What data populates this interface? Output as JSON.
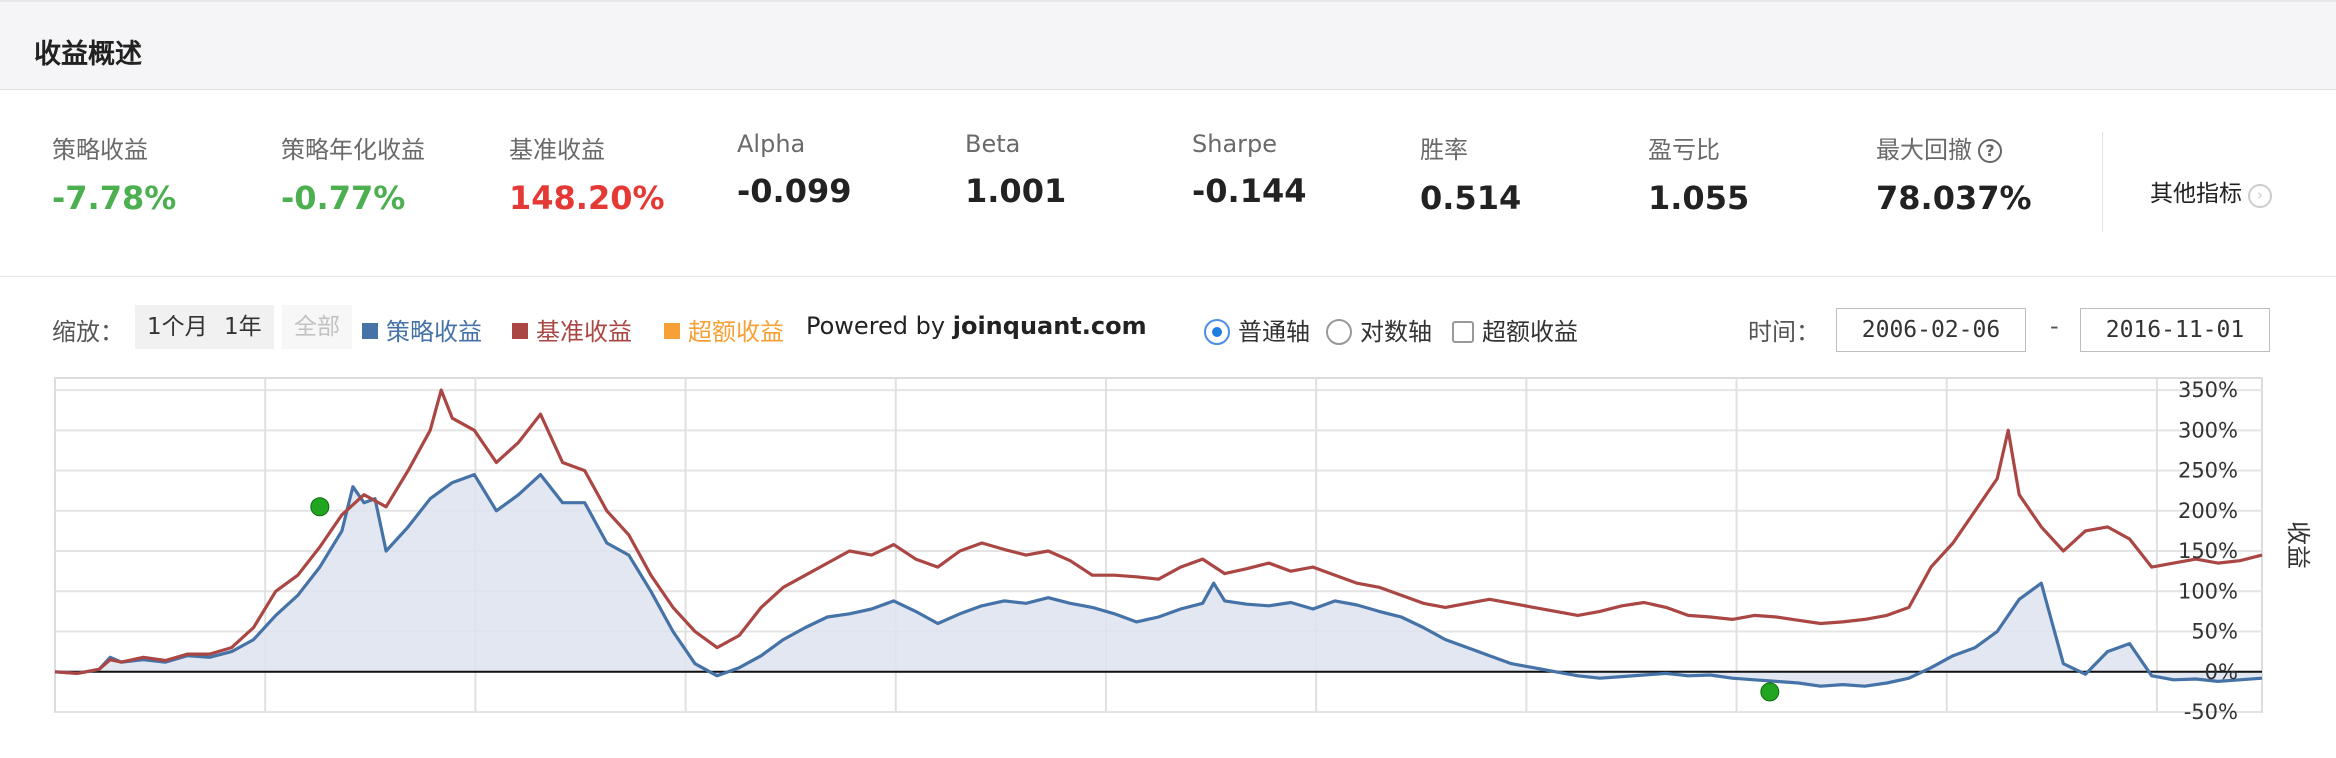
{
  "panel": {
    "title": "收益概述"
  },
  "metrics": [
    {
      "label": "策略收益",
      "value": "-7.78%",
      "color": "#4caf50"
    },
    {
      "label": "策略年化收益",
      "value": "-0.77%",
      "color": "#4caf50"
    },
    {
      "label": "基准收益",
      "value": "148.20%",
      "color": "#e53935"
    },
    {
      "label": "Alpha",
      "value": "-0.099",
      "color": "#222222"
    },
    {
      "label": "Beta",
      "value": "1.001",
      "color": "#222222"
    },
    {
      "label": "Sharpe",
      "value": "-0.144",
      "color": "#222222"
    },
    {
      "label": "胜率",
      "value": "0.514",
      "color": "#222222"
    },
    {
      "label": "盈亏比",
      "value": "1.055",
      "color": "#222222"
    },
    {
      "label": "最大回撤",
      "value": "78.037%",
      "color": "#222222",
      "help": "?"
    }
  ],
  "more_metrics": {
    "label": "其他指标",
    "chevron": "›"
  },
  "toolbar": {
    "zoom_label": "缩放：",
    "zoom_buttons": [
      "1个月",
      "1年",
      "全部"
    ],
    "legend": [
      {
        "label": "策略收益",
        "color": "#4572a7"
      },
      {
        "label": "基准收益",
        "color": "#aa4643"
      },
      {
        "label": "超额收益",
        "color": "#f7a035"
      }
    ],
    "powered_prefix": "Powered by ",
    "powered_site": "joinquant.com",
    "axis_options": [
      "普通轴",
      "对数轴"
    ],
    "excess_checkbox": "超额收益",
    "time_label": "时间：",
    "start_date": "2006-02-06",
    "date_sep": "-",
    "end_date": "2016-11-01"
  },
  "colors": {
    "strategy": "#4572a7",
    "benchmark": "#aa4643",
    "strategy_fill": "#dde3ee",
    "marker": "#22a622"
  },
  "chart_data": {
    "type": "line",
    "y_axis_label": "收益",
    "y_ticks": [
      "350%",
      "300%",
      "250%",
      "200%",
      "150%",
      "100%",
      "50%",
      "0%",
      "-50%"
    ],
    "ylim": [
      -50,
      365
    ],
    "x_domain": [
      0,
      100
    ],
    "grid": "on",
    "series": [
      {
        "name": "策略收益",
        "fill": true,
        "points": [
          [
            0,
            0
          ],
          [
            1,
            -2
          ],
          [
            2,
            3
          ],
          [
            2.5,
            18
          ],
          [
            3,
            12
          ],
          [
            4,
            15
          ],
          [
            5,
            12
          ],
          [
            6,
            20
          ],
          [
            7,
            18
          ],
          [
            8,
            25
          ],
          [
            9,
            40
          ],
          [
            10,
            70
          ],
          [
            11,
            95
          ],
          [
            12,
            130
          ],
          [
            13,
            175
          ],
          [
            13.5,
            230
          ],
          [
            14,
            210
          ],
          [
            14.5,
            215
          ],
          [
            15,
            150
          ],
          [
            16,
            180
          ],
          [
            17,
            215
          ],
          [
            18,
            235
          ],
          [
            19,
            245
          ],
          [
            20,
            200
          ],
          [
            21,
            220
          ],
          [
            22,
            245
          ],
          [
            23,
            210
          ],
          [
            24,
            210
          ],
          [
            25,
            160
          ],
          [
            26,
            145
          ],
          [
            27,
            100
          ],
          [
            28,
            50
          ],
          [
            29,
            10
          ],
          [
            30,
            -5
          ],
          [
            31,
            5
          ],
          [
            32,
            20
          ],
          [
            33,
            40
          ],
          [
            34,
            55
          ],
          [
            35,
            68
          ],
          [
            36,
            72
          ],
          [
            37,
            78
          ],
          [
            38,
            88
          ],
          [
            39,
            75
          ],
          [
            40,
            60
          ],
          [
            41,
            72
          ],
          [
            42,
            82
          ],
          [
            43,
            88
          ],
          [
            44,
            85
          ],
          [
            45,
            92
          ],
          [
            46,
            85
          ],
          [
            47,
            80
          ],
          [
            48,
            72
          ],
          [
            49,
            62
          ],
          [
            50,
            68
          ],
          [
            51,
            78
          ],
          [
            52,
            85
          ],
          [
            52.5,
            110
          ],
          [
            53,
            88
          ],
          [
            54,
            84
          ],
          [
            55,
            82
          ],
          [
            56,
            86
          ],
          [
            57,
            78
          ],
          [
            58,
            88
          ],
          [
            59,
            83
          ],
          [
            60,
            75
          ],
          [
            61,
            68
          ],
          [
            62,
            55
          ],
          [
            63,
            40
          ],
          [
            64,
            30
          ],
          [
            65,
            20
          ],
          [
            66,
            10
          ],
          [
            67,
            5
          ],
          [
            68,
            0
          ],
          [
            69,
            -5
          ],
          [
            70,
            -8
          ],
          [
            71,
            -6
          ],
          [
            72,
            -4
          ],
          [
            73,
            -2
          ],
          [
            74,
            -5
          ],
          [
            75,
            -4
          ],
          [
            76,
            -8
          ],
          [
            77,
            -10
          ],
          [
            78,
            -12
          ],
          [
            79,
            -14
          ],
          [
            80,
            -18
          ],
          [
            81,
            -16
          ],
          [
            82,
            -18
          ],
          [
            83,
            -14
          ],
          [
            84,
            -8
          ],
          [
            85,
            5
          ],
          [
            86,
            20
          ],
          [
            87,
            30
          ],
          [
            88,
            50
          ],
          [
            89,
            90
          ],
          [
            90,
            110
          ],
          [
            90.5,
            60
          ],
          [
            91,
            10
          ],
          [
            92,
            -3
          ],
          [
            93,
            25
          ],
          [
            94,
            35
          ],
          [
            95,
            -5
          ],
          [
            96,
            -10
          ],
          [
            97,
            -9
          ],
          [
            98,
            -12
          ],
          [
            99,
            -10
          ],
          [
            100,
            -8
          ]
        ]
      },
      {
        "name": "基准收益",
        "fill": false,
        "points": [
          [
            0,
            0
          ],
          [
            1,
            -2
          ],
          [
            2,
            3
          ],
          [
            2.5,
            15
          ],
          [
            3,
            12
          ],
          [
            4,
            18
          ],
          [
            5,
            14
          ],
          [
            6,
            22
          ],
          [
            7,
            22
          ],
          [
            8,
            30
          ],
          [
            9,
            55
          ],
          [
            10,
            100
          ],
          [
            11,
            120
          ],
          [
            12,
            155
          ],
          [
            13,
            195
          ],
          [
            14,
            220
          ],
          [
            15,
            205
          ],
          [
            16,
            250
          ],
          [
            17,
            300
          ],
          [
            17.5,
            350
          ],
          [
            18,
            315
          ],
          [
            19,
            300
          ],
          [
            20,
            260
          ],
          [
            21,
            285
          ],
          [
            22,
            320
          ],
          [
            23,
            260
          ],
          [
            24,
            250
          ],
          [
            25,
            200
          ],
          [
            26,
            170
          ],
          [
            27,
            120
          ],
          [
            28,
            80
          ],
          [
            29,
            50
          ],
          [
            30,
            30
          ],
          [
            31,
            45
          ],
          [
            32,
            80
          ],
          [
            33,
            105
          ],
          [
            34,
            120
          ],
          [
            35,
            135
          ],
          [
            36,
            150
          ],
          [
            37,
            145
          ],
          [
            38,
            158
          ],
          [
            39,
            140
          ],
          [
            40,
            130
          ],
          [
            41,
            150
          ],
          [
            42,
            160
          ],
          [
            43,
            152
          ],
          [
            44,
            145
          ],
          [
            45,
            150
          ],
          [
            46,
            138
          ],
          [
            47,
            120
          ],
          [
            48,
            120
          ],
          [
            49,
            118
          ],
          [
            50,
            115
          ],
          [
            51,
            130
          ],
          [
            52,
            140
          ],
          [
            53,
            122
          ],
          [
            54,
            128
          ],
          [
            55,
            135
          ],
          [
            56,
            125
          ],
          [
            57,
            130
          ],
          [
            58,
            120
          ],
          [
            59,
            110
          ],
          [
            60,
            105
          ],
          [
            61,
            95
          ],
          [
            62,
            85
          ],
          [
            63,
            80
          ],
          [
            64,
            85
          ],
          [
            65,
            90
          ],
          [
            66,
            85
          ],
          [
            67,
            80
          ],
          [
            68,
            75
          ],
          [
            69,
            70
          ],
          [
            70,
            75
          ],
          [
            71,
            82
          ],
          [
            72,
            86
          ],
          [
            73,
            80
          ],
          [
            74,
            70
          ],
          [
            75,
            68
          ],
          [
            76,
            65
          ],
          [
            77,
            70
          ],
          [
            78,
            68
          ],
          [
            79,
            64
          ],
          [
            80,
            60
          ],
          [
            81,
            62
          ],
          [
            82,
            65
          ],
          [
            83,
            70
          ],
          [
            84,
            80
          ],
          [
            85,
            130
          ],
          [
            86,
            160
          ],
          [
            87,
            200
          ],
          [
            88,
            240
          ],
          [
            88.5,
            300
          ],
          [
            89,
            220
          ],
          [
            90,
            180
          ],
          [
            91,
            150
          ],
          [
            92,
            175
          ],
          [
            93,
            180
          ],
          [
            94,
            165
          ],
          [
            95,
            130
          ],
          [
            96,
            135
          ],
          [
            97,
            140
          ],
          [
            98,
            135
          ],
          [
            99,
            138
          ],
          [
            100,
            145
          ]
        ]
      }
    ],
    "markers": [
      {
        "series": "策略收益",
        "x": 12,
        "y": 205
      },
      {
        "series": "策略收益",
        "x": 77.7,
        "y": -25
      }
    ]
  }
}
